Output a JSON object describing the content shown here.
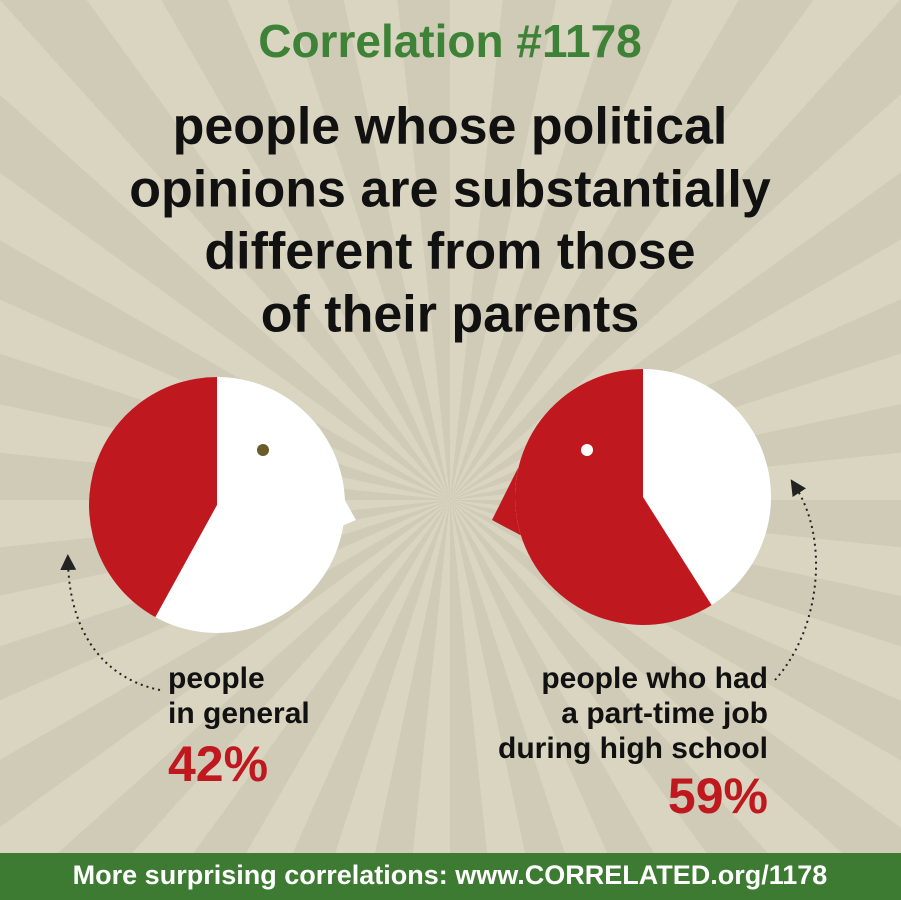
{
  "title": "Correlation #1178",
  "headline": [
    "people whose political",
    "opinions are substantially",
    "different from those",
    "of their parents"
  ],
  "chart_data": [
    {
      "type": "pie",
      "label_lines": [
        "people",
        "in general"
      ],
      "values": [
        42
      ],
      "value_labels": [
        "42%"
      ],
      "color": "#c0181f"
    },
    {
      "type": "pie",
      "label_lines": [
        "people who had",
        "a part-time job",
        "during high school"
      ],
      "values": [
        59
      ],
      "value_labels": [
        "59%"
      ],
      "color": "#c0181f"
    }
  ],
  "footer": "More surprising correlations: www.CORRELATED.org/1178"
}
